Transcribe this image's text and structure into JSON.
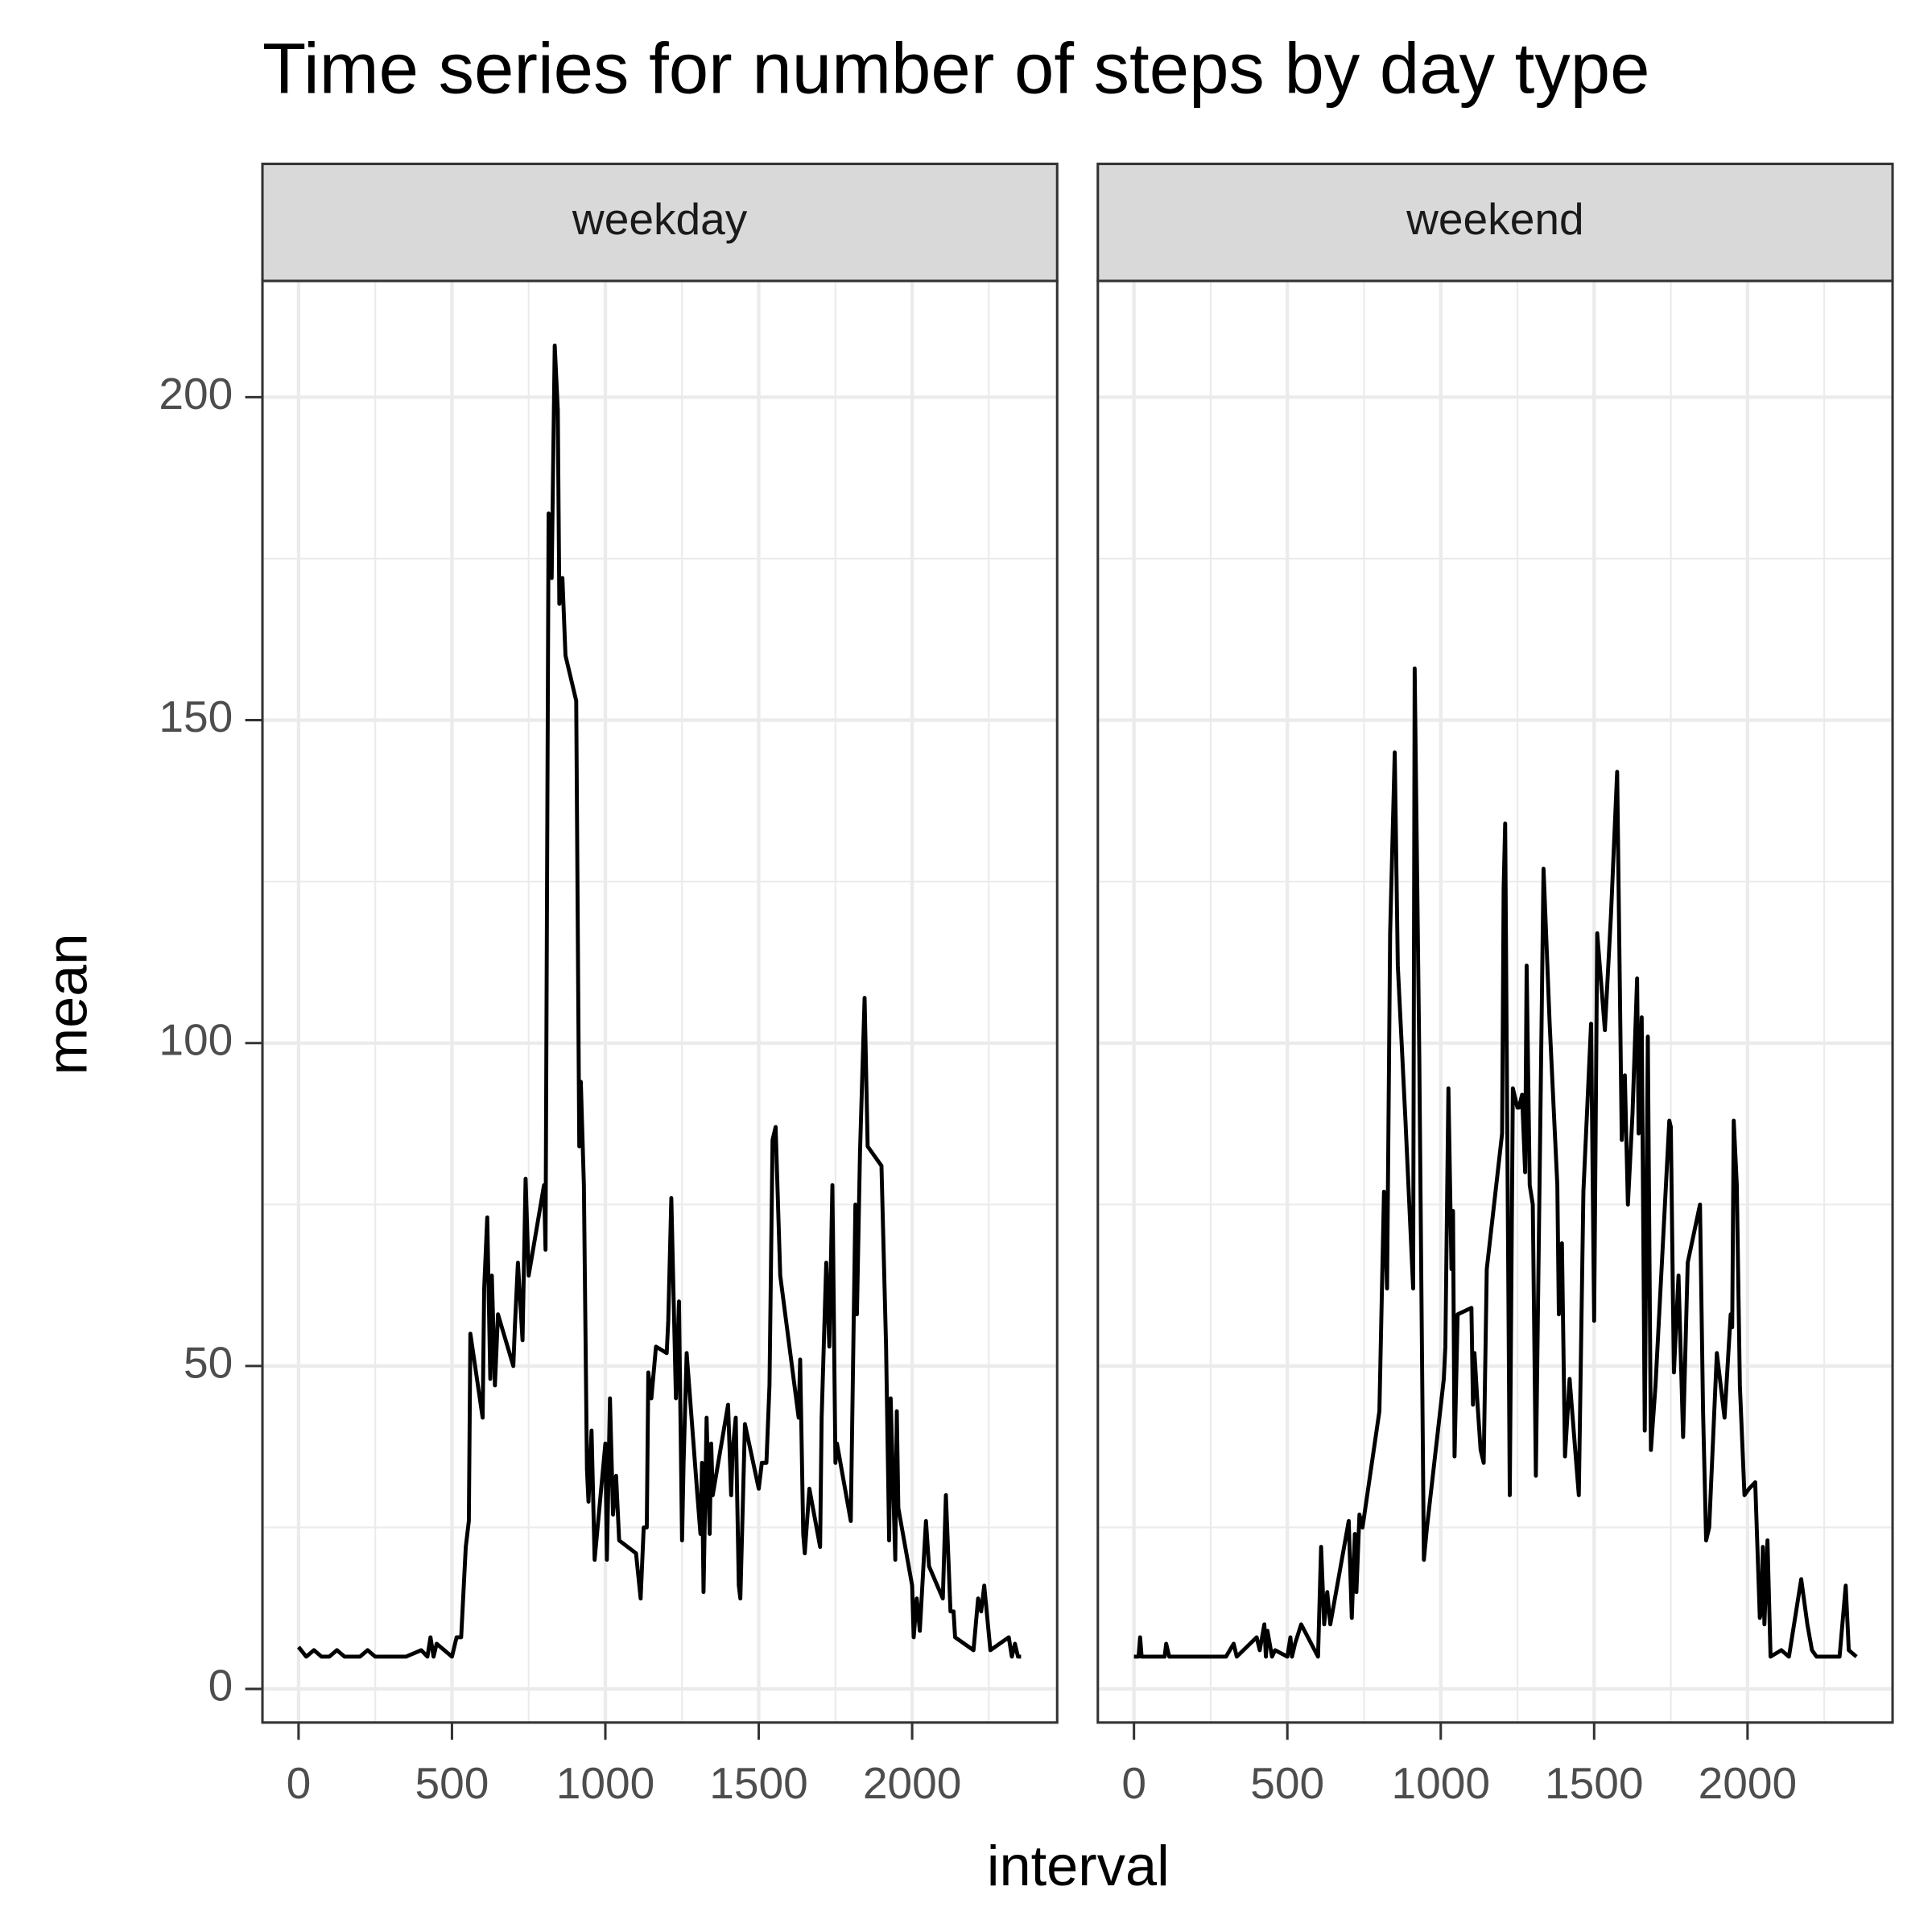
{
  "title": "Time series for number of steps by day type",
  "xlabel": "interval",
  "ylabel": "mean",
  "chart_data": [
    {
      "type": "line",
      "facet": "weekday",
      "color": "#000000",
      "xlim": [
        -117.75,
        2472.75
      ],
      "ylim": [
        -5.2,
        218
      ],
      "xticks": [
        0,
        500,
        1000,
        1500,
        2000
      ],
      "yticks": [
        0,
        50,
        100,
        150,
        200
      ],
      "x_minor_ticks": [
        250,
        750,
        1250,
        1750,
        2250
      ],
      "y_minor_ticks": [
        25,
        75,
        125,
        175
      ],
      "x": [
        0,
        25,
        50,
        75,
        100,
        125,
        150,
        200,
        225,
        250,
        275,
        300,
        350,
        400,
        420,
        430,
        440,
        450,
        500,
        515,
        530,
        545,
        555,
        560,
        600,
        605,
        615,
        625,
        630,
        640,
        650,
        700,
        705,
        715,
        730,
        740,
        750,
        800,
        805,
        815,
        825,
        835,
        845,
        850,
        860,
        870,
        905,
        915,
        920,
        930,
        940,
        945,
        955,
        965,
        1000,
        1005,
        1015,
        1025,
        1035,
        1045,
        1100,
        1115,
        1125,
        1135,
        1140,
        1150,
        1165,
        1200,
        1205,
        1215,
        1230,
        1240,
        1250,
        1255,
        1265,
        1300,
        1310,
        1315,
        1320,
        1330,
        1340,
        1345,
        1350,
        1400,
        1410,
        1415,
        1425,
        1435,
        1440,
        1455,
        1500,
        1510,
        1525,
        1535,
        1545,
        1555,
        1570,
        1630,
        1635,
        1645,
        1650,
        1665,
        1700,
        1705,
        1720,
        1730,
        1740,
        1750,
        1755,
        1800,
        1815,
        1820,
        1830,
        1845,
        1855,
        1900,
        1915,
        1925,
        1930,
        1945,
        1950,
        1955,
        2000,
        2005,
        2015,
        2025,
        2045,
        2055,
        2100,
        2110,
        2125,
        2135,
        2140,
        2200,
        2215,
        2225,
        2235,
        2255,
        2315,
        2325,
        2335,
        2345,
        2355
      ],
      "values": [
        6.5,
        5,
        6,
        5,
        5,
        6,
        5,
        5,
        6,
        5,
        5,
        5,
        5,
        6,
        5,
        8,
        5,
        7,
        5,
        8,
        8,
        22,
        26,
        55,
        42,
        62,
        73,
        48,
        64,
        47,
        58,
        50,
        56,
        66,
        54,
        79,
        64,
        78,
        68,
        182,
        172,
        208,
        198,
        168,
        172,
        160,
        153,
        84,
        94,
        78,
        34,
        29,
        40,
        20,
        38,
        20,
        45,
        27,
        33,
        23,
        21,
        14,
        25,
        25,
        49,
        45,
        53,
        52,
        57,
        76,
        45,
        60,
        23,
        35,
        52,
        30,
        24,
        35,
        15,
        42,
        24,
        38,
        30,
        44,
        30,
        37,
        42,
        16,
        14,
        41,
        31,
        35,
        35,
        47,
        85,
        87,
        64,
        42,
        51,
        24,
        21,
        31,
        22,
        42,
        66,
        53,
        78,
        35,
        38,
        26,
        75,
        58,
        83,
        107,
        84,
        81,
        53,
        23,
        45,
        20,
        43,
        28,
        16,
        8,
        14,
        9,
        26,
        19,
        14,
        30,
        12,
        12,
        8,
        6,
        14,
        12,
        16,
        6,
        8,
        5,
        7,
        5,
        5
      ]
    },
    {
      "type": "line",
      "facet": "weekend",
      "color": "#000000",
      "xlim": [
        -117.75,
        2472.75
      ],
      "ylim": [
        -5.2,
        218
      ],
      "xticks": [
        0,
        500,
        1000,
        1500,
        2000
      ],
      "yticks": [
        0,
        50,
        100,
        150,
        200
      ],
      "x_minor_ticks": [
        250,
        750,
        1250,
        1750,
        2250
      ],
      "y_minor_ticks": [
        25,
        75,
        125,
        175
      ],
      "x": [
        0,
        15,
        20,
        25,
        50,
        100,
        105,
        115,
        150,
        200,
        300,
        325,
        335,
        400,
        410,
        425,
        430,
        435,
        450,
        460,
        500,
        510,
        515,
        525,
        545,
        600,
        610,
        620,
        630,
        640,
        700,
        710,
        720,
        725,
        735,
        745,
        800,
        815,
        825,
        835,
        850,
        860,
        885,
        910,
        915,
        930,
        945,
        955,
        1010,
        1015,
        1025,
        1035,
        1040,
        1045,
        1055,
        1100,
        1105,
        1110,
        1120,
        1130,
        1140,
        1150,
        1200,
        1205,
        1210,
        1225,
        1235,
        1250,
        1255,
        1265,
        1275,
        1280,
        1290,
        1300,
        1310,
        1335,
        1355,
        1380,
        1385,
        1395,
        1405,
        1420,
        1450,
        1465,
        1490,
        1500,
        1510,
        1535,
        1555,
        1575,
        1590,
        1600,
        1610,
        1625,
        1640,
        1645,
        1655,
        1665,
        1675,
        1685,
        1700,
        1745,
        1750,
        1760,
        1775,
        1790,
        1805,
        1845,
        1855,
        1865,
        1875,
        1900,
        1925,
        1945,
        1950,
        1955,
        1965,
        1975,
        1990,
        2005,
        2025,
        2035,
        2040,
        2045,
        2050,
        2055,
        2065,
        2075,
        2110,
        2135,
        2175,
        2195,
        2210,
        2225,
        2300,
        2320,
        2330,
        2355
      ],
      "values": [
        5,
        5,
        8,
        5,
        5,
        5,
        7,
        5,
        5,
        5,
        5,
        7,
        5,
        8,
        6,
        10,
        5,
        9,
        5,
        6,
        5,
        8,
        5,
        7,
        10,
        5,
        22,
        10,
        15,
        10,
        26,
        11,
        24,
        15,
        27,
        25,
        43,
        77,
        62,
        117,
        145,
        112,
        88,
        62,
        158,
        98,
        20,
        25,
        48,
        53,
        93,
        65,
        74,
        36,
        58,
        59,
        44,
        52,
        44,
        37,
        35,
        65,
        86,
        124,
        134,
        30,
        93,
        90,
        90,
        92,
        80,
        112,
        78,
        75,
        33,
        127,
        103,
        78,
        58,
        69,
        36,
        48,
        30,
        77,
        103,
        57,
        117,
        102,
        120,
        142,
        85,
        95,
        75,
        89,
        110,
        86,
        104,
        40,
        101,
        37,
        47,
        88,
        87,
        49,
        64,
        39,
        66,
        75,
        43,
        23,
        25,
        52,
        42,
        58,
        56,
        88,
        78,
        47,
        30,
        31,
        32,
        18,
        11,
        12,
        22,
        10,
        23,
        5,
        6,
        5,
        17,
        10,
        6,
        5,
        5,
        16,
        6,
        5
      ]
    }
  ]
}
